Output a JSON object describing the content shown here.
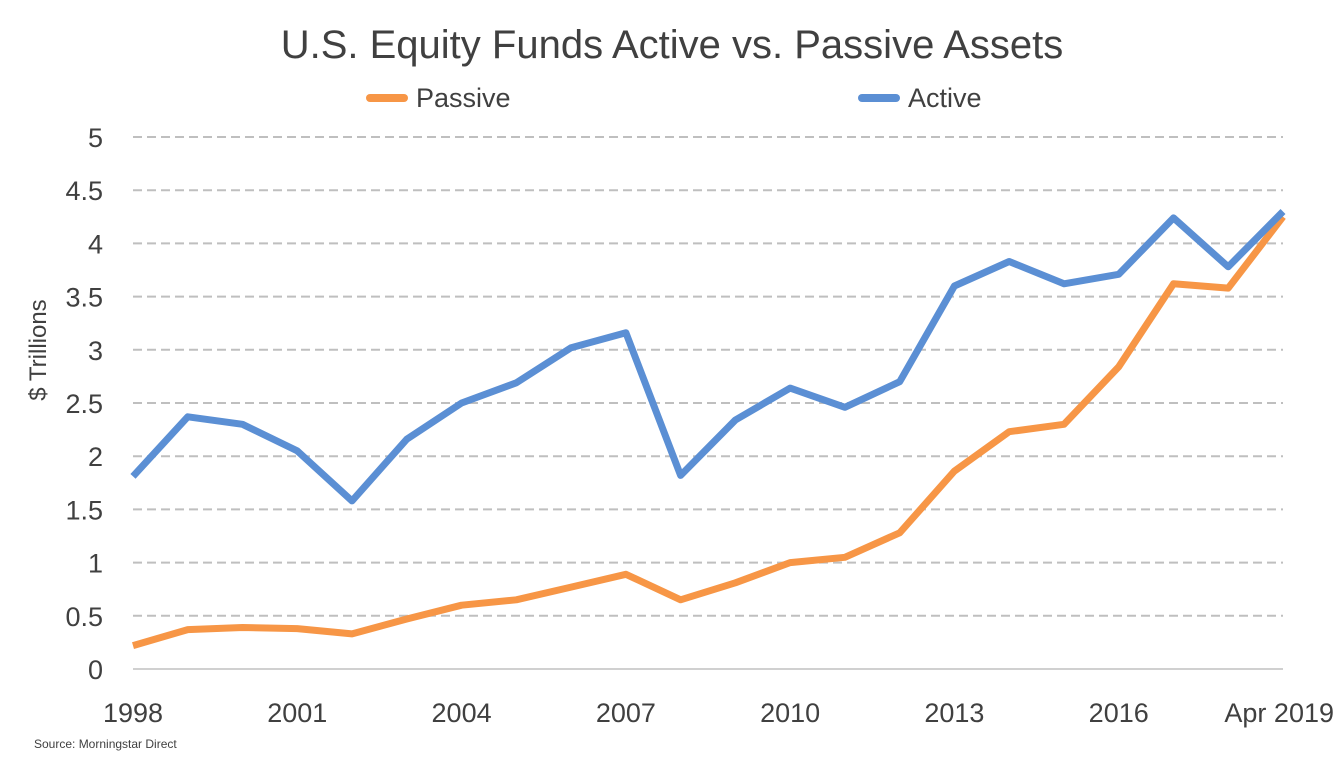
{
  "chart_data": {
    "type": "line",
    "title": "U.S. Equity Funds Active vs. Passive Assets",
    "xlabel": "",
    "ylabel": "$ Trillions",
    "x": [
      "1998",
      "1999",
      "2000",
      "2001",
      "2002",
      "2003",
      "2004",
      "2005",
      "2006",
      "2007",
      "2008",
      "2009",
      "2010",
      "2011",
      "2012",
      "2013",
      "2014",
      "2015",
      "2016",
      "2017",
      "2018",
      "Apr 2019"
    ],
    "x_tick_labels": [
      "1998",
      "2001",
      "2004",
      "2007",
      "2010",
      "2013",
      "2016",
      "Apr 2019"
    ],
    "ylim": [
      0,
      5
    ],
    "y_ticks": [
      "0",
      "0.5",
      "1",
      "1.5",
      "2",
      "2.5",
      "3",
      "3.5",
      "4",
      "4.5",
      "5"
    ],
    "grid": "horizontal-dashed",
    "legend": "top",
    "series": [
      {
        "name": "Passive",
        "color": "#F79646",
        "values": [
          0.22,
          0.37,
          0.39,
          0.38,
          0.33,
          0.47,
          0.6,
          0.65,
          0.77,
          0.89,
          0.65,
          0.81,
          1.0,
          1.05,
          1.28,
          1.86,
          2.23,
          2.3,
          2.84,
          3.62,
          3.58,
          4.25
        ]
      },
      {
        "name": "Active",
        "color": "#5B8FD4",
        "values": [
          1.81,
          2.37,
          2.3,
          2.05,
          1.58,
          2.16,
          2.5,
          2.69,
          3.02,
          3.16,
          1.82,
          2.34,
          2.64,
          2.46,
          2.7,
          3.6,
          3.83,
          3.62,
          3.71,
          4.24,
          3.78,
          4.3
        ]
      }
    ]
  },
  "source_note": "Source: Morningstar Direct"
}
